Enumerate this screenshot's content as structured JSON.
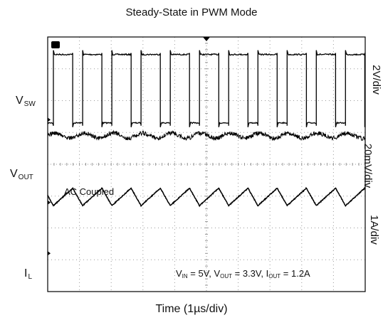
{
  "chart_data": {
    "type": "line",
    "title": "Steady-State in PWM Mode",
    "xlabel": "Time (1µs/div)",
    "channels": [
      {
        "label": "V",
        "sub": "SW",
        "scale": "2V/div"
      },
      {
        "label": "V",
        "sub": "OUT",
        "scale": "20mV/div"
      },
      {
        "label": "I",
        "sub": "L",
        "scale": "1A/div"
      }
    ],
    "annotation": "AC Coupled",
    "conditions": [
      {
        "label": "V",
        "sub": "IN",
        "value": "5V"
      },
      {
        "label": "V",
        "sub": "OUT",
        "value": "3.3V"
      },
      {
        "label": "I",
        "sub": "OUT",
        "value": "1.2A"
      }
    ],
    "divisions": {
      "x": 10,
      "y": 8
    },
    "grid": true,
    "sw_rising_edges_div": [
      0.18,
      1.1,
      2.02,
      2.94,
      3.86,
      4.78,
      5.7,
      6.62,
      7.54,
      8.46,
      9.38
    ],
    "sw_duty": 0.66,
    "trace_color": "#000000",
    "grid_color": "#9a9a9a"
  }
}
